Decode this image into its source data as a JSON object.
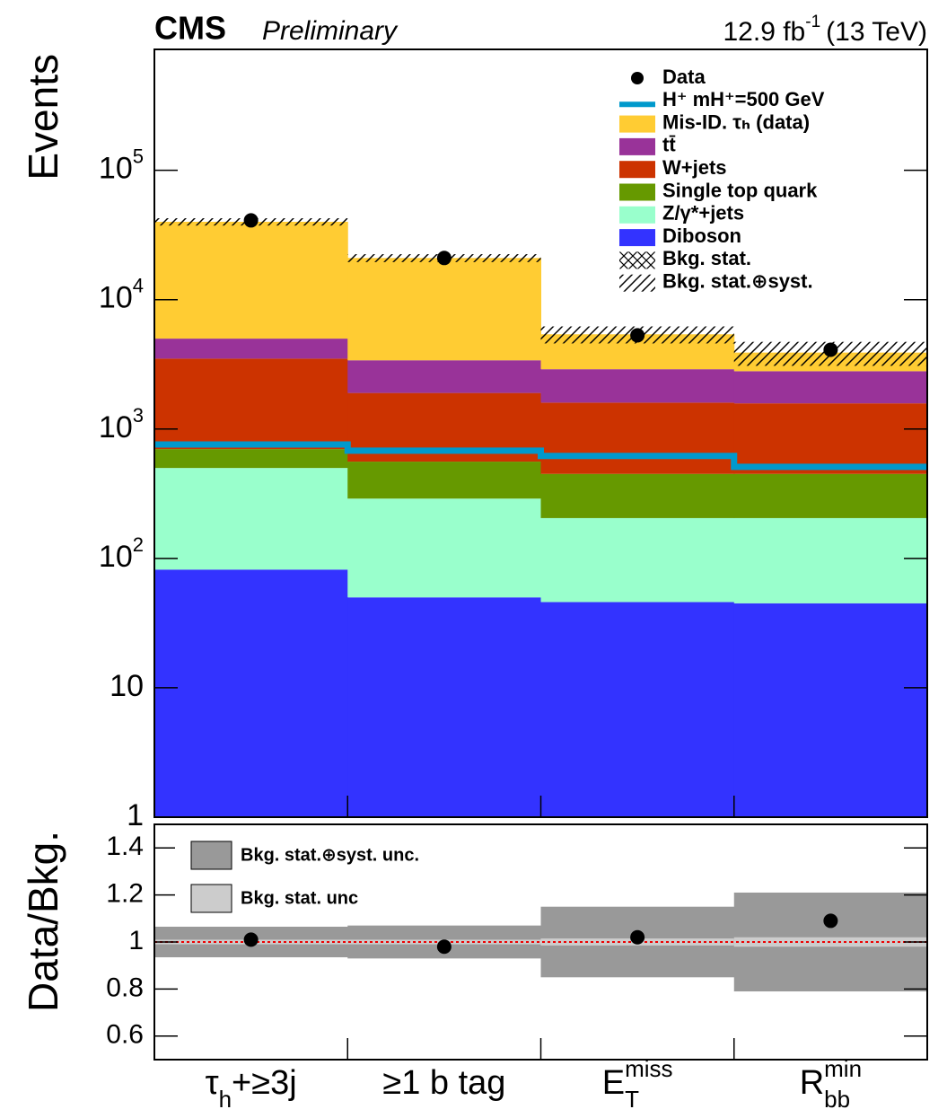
{
  "header": {
    "experiment": "CMS",
    "status": "Preliminary",
    "lumi": "12.9 fb",
    "lumi_exp": "-1",
    "energy": "(13 TeV)"
  },
  "chart_data": [
    {
      "type": "stacked_step",
      "ylabel": "Events",
      "log": true,
      "categories": [
        {
          "base": "τ",
          "sub": "h",
          "after": "+≥3j"
        },
        {
          "base": "≥1 b tag"
        },
        {
          "base": "E",
          "sub": "T",
          "sup": "miss"
        },
        {
          "base": "R",
          "sub": "bb",
          "sup": "min"
        }
      ],
      "ylim": [
        1,
        860000
      ],
      "yticks": [
        1,
        10,
        {
          "value": 100,
          "label": "10",
          "exponent": "2"
        },
        {
          "value": 1000,
          "label": "10",
          "exponent": "3"
        },
        {
          "value": 10000,
          "label": "10",
          "exponent": "4"
        },
        {
          "value": 100000,
          "label": "10",
          "exponent": "5"
        }
      ],
      "series": [
        {
          "name": "Diboson",
          "color": "#3333ff",
          "values": [
            82,
            50,
            46,
            45
          ]
        },
        {
          "name": "Z/γ*+jets",
          "color": "#99ffcc",
          "values": [
            418,
            240,
            159,
            160
          ]
        },
        {
          "name": "Single top quark",
          "color": "#669900",
          "values": [
            200,
            270,
            245,
            245
          ]
        },
        {
          "name": "W+jets",
          "color": "#cc3300",
          "values": [
            2800,
            1340,
            1150,
            1130
          ]
        },
        {
          "name": "tt̄",
          "color": "#993399",
          "values": [
            1500,
            1500,
            1300,
            1220
          ]
        },
        {
          "name": "Mis-ID. τₕ (data)",
          "color": "#ffcc33",
          "values": [
            35000,
            17600,
            2500,
            1100
          ]
        }
      ],
      "signal": {
        "name": "H⁺ mH⁺=500 GeV",
        "color": "#0099cc",
        "values": [
          760,
          680,
          620,
          510
        ]
      },
      "data": {
        "name": "Data",
        "values": [
          41000,
          21000,
          5300,
          4100
        ]
      },
      "stat_label": "Bkg. stat.",
      "syst_label": "Bkg. stat.⊕syst.",
      "syst_unc": [
        0.065,
        0.07,
        0.15,
        0.21
      ]
    },
    {
      "type": "ratio",
      "ylabel": "Data/Bkg.",
      "ylim": [
        0.5,
        1.5
      ],
      "yticks": [
        0.6,
        0.8,
        1,
        1.2,
        1.4
      ],
      "values": [
        1.01,
        0.98,
        1.02,
        1.09
      ],
      "syst_unc": [
        0.065,
        0.07,
        0.15,
        0.21
      ],
      "stat_unc": [
        0.01,
        0.01,
        0.015,
        0.02
      ],
      "reference_line": 1,
      "syst_label": "Bkg. stat.⊕syst. unc.",
      "stat_label": "Bkg. stat. unc"
    }
  ]
}
